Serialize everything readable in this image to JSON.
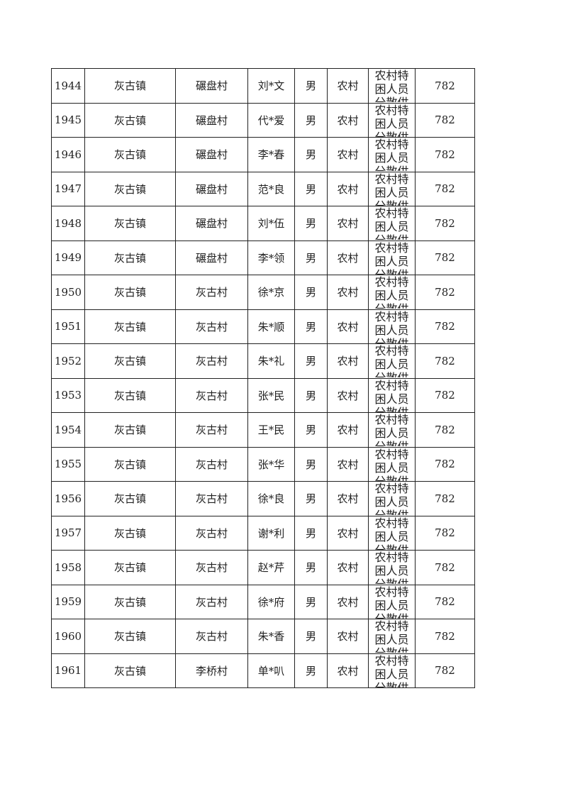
{
  "table": {
    "rows": [
      {
        "id": "1944",
        "town": "灰古镇",
        "village": "碾盘村",
        "name": "刘*文",
        "gender": "男",
        "region": "农村",
        "category": "农村特困人员分散供养",
        "amount": "782"
      },
      {
        "id": "1945",
        "town": "灰古镇",
        "village": "碾盘村",
        "name": "代*爱",
        "gender": "男",
        "region": "农村",
        "category": "农村特困人员分散供养",
        "amount": "782"
      },
      {
        "id": "1946",
        "town": "灰古镇",
        "village": "碾盘村",
        "name": "李*春",
        "gender": "男",
        "region": "农村",
        "category": "农村特困人员分散供养",
        "amount": "782"
      },
      {
        "id": "1947",
        "town": "灰古镇",
        "village": "碾盘村",
        "name": "范*良",
        "gender": "男",
        "region": "农村",
        "category": "农村特困人员分散供养",
        "amount": "782"
      },
      {
        "id": "1948",
        "town": "灰古镇",
        "village": "碾盘村",
        "name": "刘*伍",
        "gender": "男",
        "region": "农村",
        "category": "农村特困人员分散供养",
        "amount": "782"
      },
      {
        "id": "1949",
        "town": "灰古镇",
        "village": "碾盘村",
        "name": "李*领",
        "gender": "男",
        "region": "农村",
        "category": "农村特困人员分散供养",
        "amount": "782"
      },
      {
        "id": "1950",
        "town": "灰古镇",
        "village": "灰古村",
        "name": "徐*京",
        "gender": "男",
        "region": "农村",
        "category": "农村特困人员分散供养",
        "amount": "782"
      },
      {
        "id": "1951",
        "town": "灰古镇",
        "village": "灰古村",
        "name": "朱*顺",
        "gender": "男",
        "region": "农村",
        "category": "农村特困人员分散供养",
        "amount": "782"
      },
      {
        "id": "1952",
        "town": "灰古镇",
        "village": "灰古村",
        "name": "朱*礼",
        "gender": "男",
        "region": "农村",
        "category": "农村特困人员分散供养",
        "amount": "782"
      },
      {
        "id": "1953",
        "town": "灰古镇",
        "village": "灰古村",
        "name": "张*民",
        "gender": "男",
        "region": "农村",
        "category": "农村特困人员分散供养",
        "amount": "782"
      },
      {
        "id": "1954",
        "town": "灰古镇",
        "village": "灰古村",
        "name": "王*民",
        "gender": "男",
        "region": "农村",
        "category": "农村特困人员分散供养",
        "amount": "782"
      },
      {
        "id": "1955",
        "town": "灰古镇",
        "village": "灰古村",
        "name": "张*华",
        "gender": "男",
        "region": "农村",
        "category": "农村特困人员分散供养",
        "amount": "782"
      },
      {
        "id": "1956",
        "town": "灰古镇",
        "village": "灰古村",
        "name": "徐*良",
        "gender": "男",
        "region": "农村",
        "category": "农村特困人员分散供养",
        "amount": "782"
      },
      {
        "id": "1957",
        "town": "灰古镇",
        "village": "灰古村",
        "name": "谢*利",
        "gender": "男",
        "region": "农村",
        "category": "农村特困人员分散供养",
        "amount": "782"
      },
      {
        "id": "1958",
        "town": "灰古镇",
        "village": "灰古村",
        "name": "赵*芹",
        "gender": "男",
        "region": "农村",
        "category": "农村特困人员分散供养",
        "amount": "782"
      },
      {
        "id": "1959",
        "town": "灰古镇",
        "village": "灰古村",
        "name": "徐*府",
        "gender": "男",
        "region": "农村",
        "category": "农村特困人员分散供养",
        "amount": "782"
      },
      {
        "id": "1960",
        "town": "灰古镇",
        "village": "灰古村",
        "name": "朱*香",
        "gender": "男",
        "region": "农村",
        "category": "农村特困人员分散供养",
        "amount": "782"
      },
      {
        "id": "1961",
        "town": "灰古镇",
        "village": "李桥村",
        "name": "单*叭",
        "gender": "男",
        "region": "农村",
        "category": "农村特困人员分散供养",
        "amount": "782"
      }
    ]
  }
}
